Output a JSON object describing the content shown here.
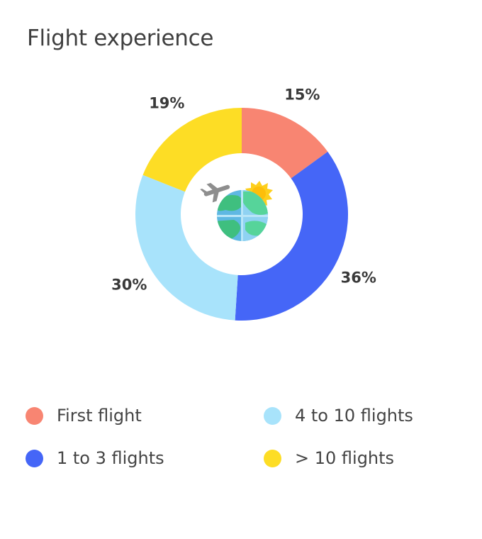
{
  "title": "Flight experience",
  "chart_data": {
    "type": "pie",
    "variant": "donut",
    "categories": [
      "First flight",
      "1 to 3 flights",
      "4 to 10 flights",
      "> 10 flights"
    ],
    "values": [
      15,
      36,
      30,
      19
    ],
    "labels": [
      "15%",
      "36%",
      "30%",
      "19%"
    ],
    "colors": [
      "#f88572",
      "#4566f7",
      "#a8e3fb",
      "#fddd25"
    ],
    "legend_position": "bottom",
    "center_icon": "globe-with-airplane-and-sun-icon"
  },
  "legend": [
    {
      "label": "First flight",
      "color": "#f88572"
    },
    {
      "label": "4 to 10 flights",
      "color": "#a8e3fb"
    },
    {
      "label": "1 to 3 flights",
      "color": "#4566f7"
    },
    {
      "label": "> 10 flights",
      "color": "#fddd25"
    }
  ]
}
